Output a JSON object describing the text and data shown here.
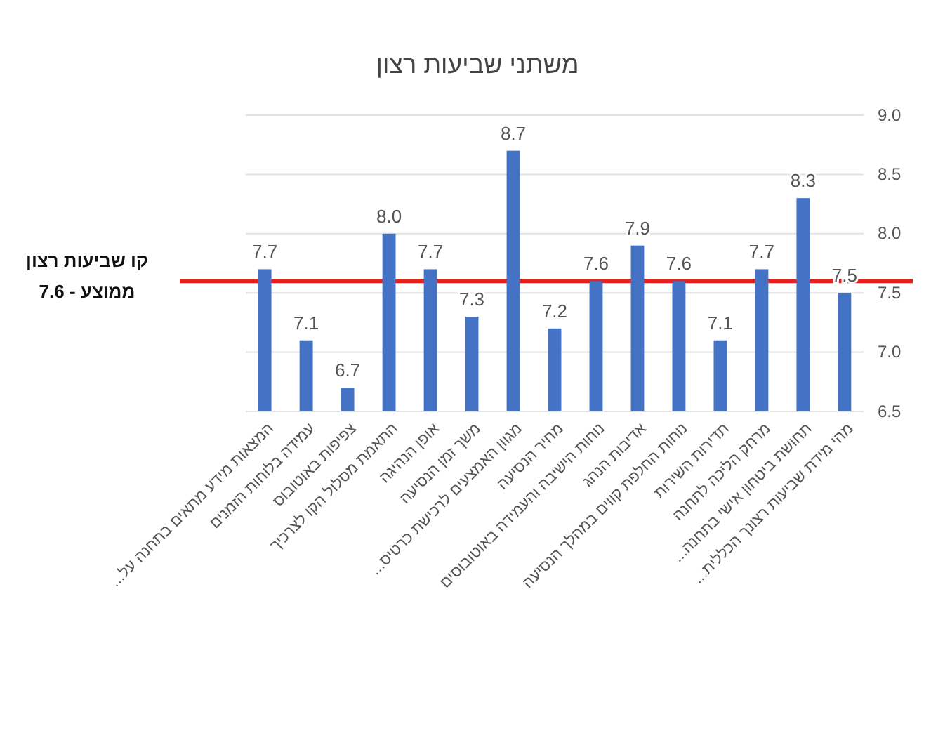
{
  "chart_data": {
    "type": "bar",
    "title": "משתני שביעות רצון",
    "categories": [
      "המצאות מידע מתאים בתחנה על...",
      "עמידה בלוחות הזמנים",
      "צפיפות באוטובוס",
      "התאמת מסלול הקו לצרכיך",
      "אופן הנהיגה",
      "משך זמן הנסיעה",
      "מגוון האמצעים לרכישת כרטיס...",
      "מחיר הנסיעה",
      "נוחות הישיבה והעמידה באוטובוסים",
      "אדיבות הנהג",
      "נוחות החלפת קווים במהלך הנסיעה",
      "תדירות השירות",
      "מרחק הליכה לתחנה",
      "תחושת ביטחון אישי בתחנה...",
      "מהי מידת שביעות רצונך הכללית..."
    ],
    "values": [
      7.7,
      7.1,
      6.7,
      8.0,
      7.7,
      7.3,
      8.7,
      7.2,
      7.6,
      7.9,
      7.6,
      7.1,
      7.7,
      8.3,
      7.5
    ],
    "value_labels": [
      "7.7",
      "7.1",
      "6.7",
      "8.0",
      "7.7",
      "7.3",
      "8.7",
      "7.2",
      "7.6",
      "7.9",
      "7.6",
      "7.1",
      "7.7",
      "8.3",
      "7.5"
    ],
    "color": "#4472c4",
    "ylim": [
      6.5,
      9.0
    ],
    "yticks": [
      6.5,
      {
        "value": 7,
        "label": "7.0"
      },
      7.5,
      {
        "value": 8,
        "label": "8.0"
      },
      8.5,
      {
        "value": 9,
        "label": "9.0"
      }
    ],
    "grid": "y",
    "ref_lines": [
      {
        "axis": "y",
        "value": 7.6,
        "label": "קו שביעות רצון\nממוצע - 7.6",
        "color": "#e8201a"
      }
    ]
  }
}
